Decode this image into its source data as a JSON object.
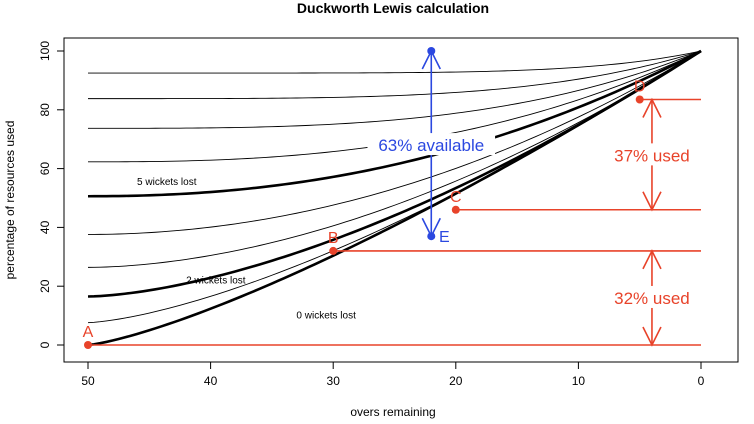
{
  "chart_data": {
    "type": "line",
    "title": "Duckworth Lewis calculation",
    "xlabel": "overs remaining",
    "ylabel": "percentage of resources used",
    "xlim": [
      50,
      0
    ],
    "ylim": [
      0,
      100
    ],
    "x_ticks": [
      "50",
      "40",
      "30",
      "20",
      "10",
      "0"
    ],
    "y_ticks": [
      "0",
      "20",
      "40",
      "60",
      "80",
      "100"
    ],
    "grid": false,
    "curves": [
      {
        "start": 92.5,
        "k": 6.0,
        "bold": false
      },
      {
        "start": 83.8,
        "k": 4.0,
        "bold": false
      },
      {
        "start": 73.7,
        "k": 3.2,
        "bold": false
      },
      {
        "start": 62.3,
        "k": 2.6,
        "bold": false
      },
      {
        "start": 50.6,
        "k": 2.2,
        "bold": true,
        "label": "5 wickets lost",
        "label_x": 46,
        "label_y": 54.5
      },
      {
        "start": 37.6,
        "k": 2.0,
        "bold": false
      },
      {
        "start": 26.4,
        "k": 1.8,
        "bold": false
      },
      {
        "start": 16.5,
        "k": 1.6,
        "bold": true,
        "label": "2 wickets lost",
        "label_x": 42,
        "label_y": 21
      },
      {
        "start": 7.6,
        "k": 1.45,
        "bold": false
      },
      {
        "start": 0,
        "k": 1.3,
        "bold": true,
        "label": "0 wickets lost",
        "label_x": 33,
        "label_y": 9
      }
    ],
    "points": [
      {
        "label": "A",
        "x": 50,
        "y": 0,
        "color": "#e8432a"
      },
      {
        "label": "B",
        "x": 30,
        "y": 32,
        "color": "#e8432a"
      },
      {
        "label": "C",
        "x": 20,
        "y": 46,
        "color": "#e8432a"
      },
      {
        "label": "D",
        "x": 5,
        "y": 83.5,
        "color": "#e8432a"
      },
      {
        "label": "E",
        "x": 22,
        "y": 37,
        "color": "#2b48e0"
      }
    ],
    "hlines": [
      {
        "y": 0,
        "x_from": 50,
        "x_to": 0
      },
      {
        "y": 32,
        "x_from": 30,
        "x_to": 0
      },
      {
        "y": 46,
        "x_from": 20,
        "x_to": 0
      },
      {
        "y": 83.5,
        "x_from": 5,
        "x_to": 0
      }
    ],
    "annotations": [
      {
        "text": "63% available",
        "color": "#2b48e0",
        "arrow_x": 22,
        "y_from": 37,
        "y_to": 100,
        "text_x": 22,
        "text_y": 68
      },
      {
        "text": "37% used",
        "color": "#e8432a",
        "arrow_x": 4,
        "y_from": 46,
        "y_to": 83.5,
        "text_x": 4,
        "text_y": 64.5
      },
      {
        "text": "32% used",
        "color": "#e8432a",
        "arrow_x": 4,
        "y_from": 0,
        "y_to": 32,
        "text_x": 4,
        "text_y": 16
      }
    ]
  }
}
